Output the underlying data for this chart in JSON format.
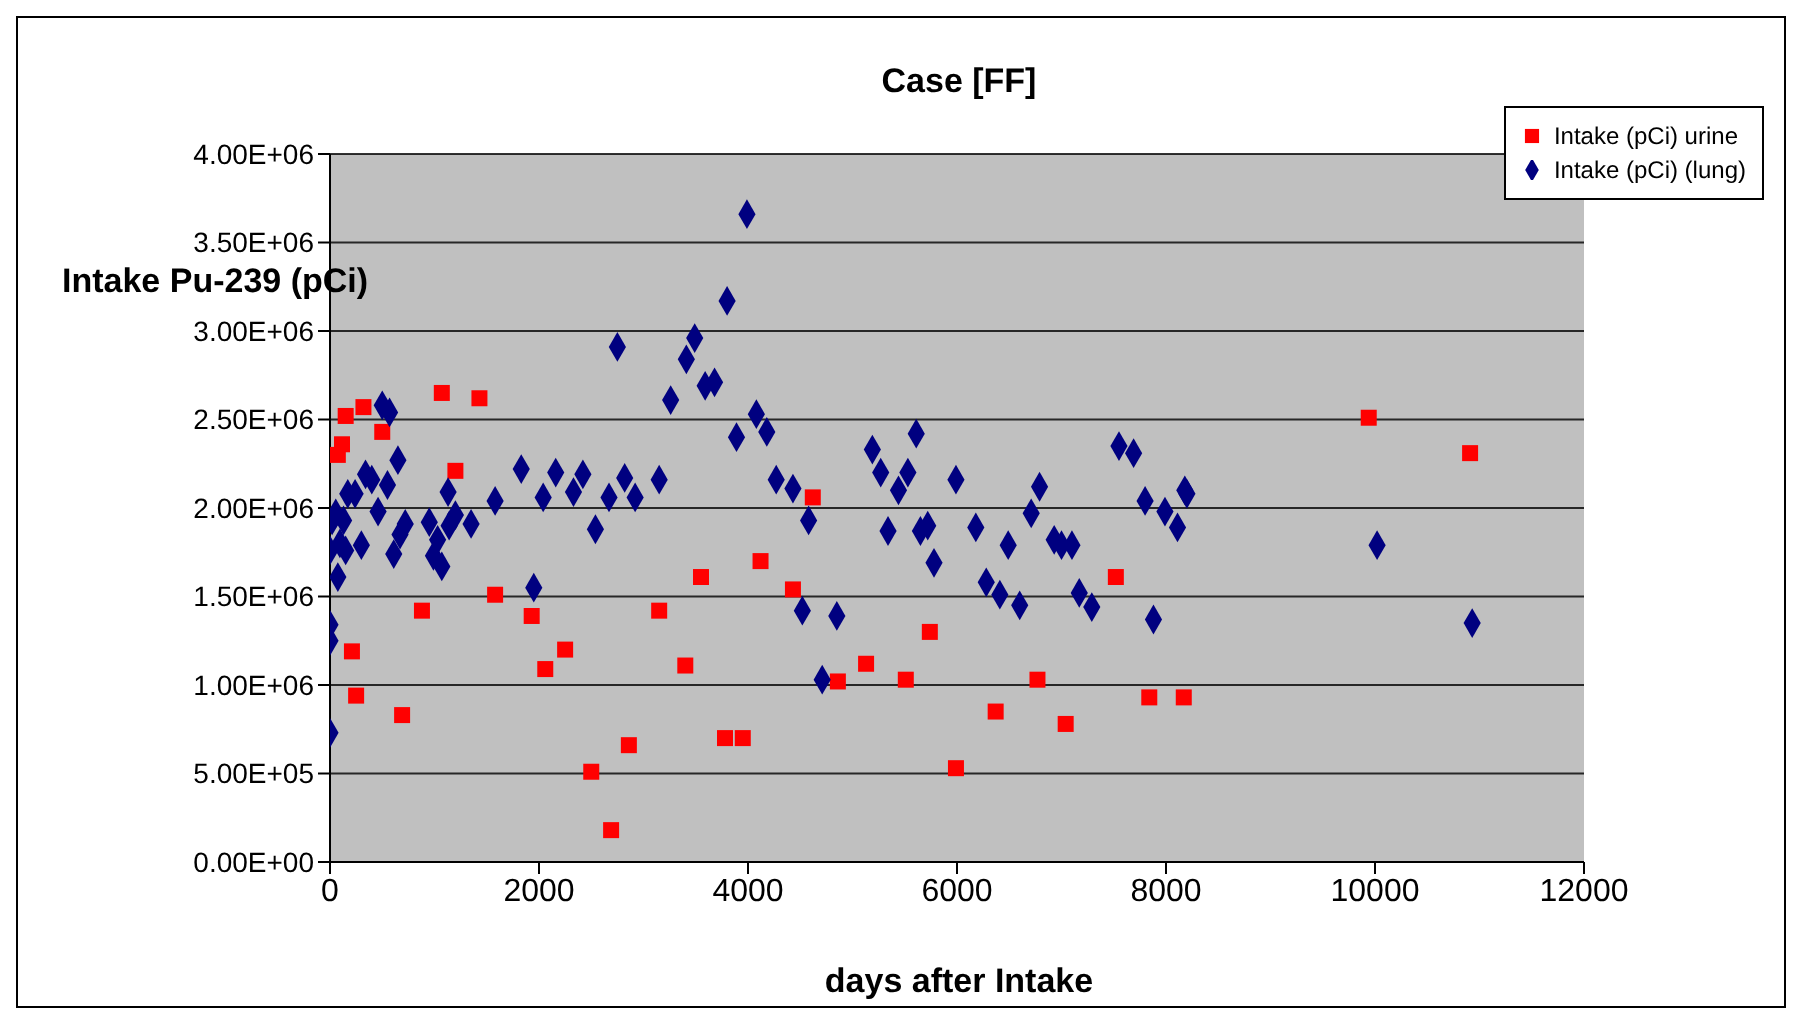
{
  "chart_data": {
    "type": "scatter",
    "title": "Case [FF]",
    "xlabel": "days after Intake",
    "ylabel": "Intake Pu-239 (pCi)",
    "xlim": [
      0,
      12000
    ],
    "xticks": [
      0,
      2000,
      4000,
      6000,
      8000,
      10000,
      12000
    ],
    "ylim": [
      0,
      4000000
    ],
    "yticks": [
      {
        "value": 0,
        "label": "0.00E+00"
      },
      {
        "value": 500000,
        "label": "5.00E+05"
      },
      {
        "value": 1000000,
        "label": "1.00E+06"
      },
      {
        "value": 1500000,
        "label": "1.50E+06"
      },
      {
        "value": 2000000,
        "label": "2.00E+06"
      },
      {
        "value": 2500000,
        "label": "2.50E+06"
      },
      {
        "value": 3000000,
        "label": "3.00E+06"
      },
      {
        "value": 3500000,
        "label": "3.50E+06"
      },
      {
        "value": 4000000,
        "label": "4.00E+06"
      }
    ],
    "grid": "y",
    "legend": "top right",
    "series": [
      {
        "name": "Intake (pCi) urine",
        "color": "#ff0000",
        "marker": "square",
        "x": [
          150,
          320,
          115,
          75,
          500,
          1070,
          1430,
          1200,
          1580,
          880,
          1930,
          210,
          2250,
          2060,
          250,
          690,
          2500,
          2860,
          2690,
          3150,
          3400,
          3550,
          3780,
          3950,
          4620,
          4120,
          4430,
          4860,
          5130,
          5510,
          5740,
          5990,
          6370,
          6770,
          7040,
          7520,
          7840,
          8170,
          9940,
          10910
        ],
        "values": [
          2520000,
          2570000,
          2360000,
          2300000,
          2430000,
          2650000,
          2620000,
          2210000,
          1510000,
          1420000,
          1390000,
          1190000,
          1200000,
          1090000,
          940000,
          830000,
          510000,
          660000,
          180000,
          1420000,
          1110000,
          1610000,
          700000,
          700000,
          2060000,
          1700000,
          1540000,
          1020000,
          1120000,
          1030000,
          1300000,
          530000,
          850000,
          1030000,
          780000,
          1610000,
          930000,
          930000,
          2510000,
          2310000
        ]
      },
      {
        "name": "Intake (pCi) (lung)",
        "color": "#000080",
        "marker": "diamond",
        "x": [
          0,
          0,
          0,
          75,
          0,
          95,
          150,
          300,
          20,
          55,
          130,
          170,
          240,
          340,
          400,
          550,
          460,
          650,
          500,
          570,
          720,
          670,
          610,
          950,
          1030,
          990,
          1070,
          1130,
          1200,
          1140,
          1350,
          1580,
          1830,
          1950,
          2040,
          2160,
          2330,
          2420,
          2540,
          2670,
          2820,
          2920,
          3150,
          2750,
          3260,
          3410,
          3490,
          3590,
          3680,
          3800,
          3890,
          3990,
          4080,
          4180,
          4270,
          4430,
          4580,
          4520,
          4850,
          4710,
          5190,
          5270,
          5340,
          5440,
          5530,
          5610,
          5650,
          5720,
          5780,
          5990,
          6180,
          6280,
          6410,
          6490,
          6600,
          6710,
          6790,
          6930,
          7000,
          7100,
          7170,
          7290,
          7550,
          7690,
          7800,
          7880,
          7990,
          8110,
          8180,
          8200,
          10020,
          10930
        ],
        "values": [
          730000,
          1340000,
          1250000,
          1610000,
          1760000,
          1800000,
          1760000,
          1790000,
          1930000,
          1970000,
          1930000,
          2080000,
          2080000,
          2190000,
          2160000,
          2130000,
          1980000,
          2270000,
          2580000,
          2540000,
          1910000,
          1850000,
          1740000,
          1920000,
          1820000,
          1730000,
          1670000,
          2090000,
          1960000,
          1900000,
          1910000,
          2040000,
          2220000,
          1550000,
          2060000,
          2200000,
          2090000,
          2190000,
          1880000,
          2060000,
          2170000,
          2060000,
          2160000,
          2910000,
          2610000,
          2840000,
          2960000,
          2690000,
          2710000,
          3170000,
          2400000,
          3660000,
          2530000,
          2430000,
          2160000,
          2110000,
          1930000,
          1420000,
          1390000,
          1030000,
          2330000,
          2200000,
          1870000,
          2100000,
          2200000,
          2420000,
          1870000,
          1900000,
          1690000,
          2160000,
          1890000,
          1580000,
          1510000,
          1790000,
          1450000,
          1970000,
          2120000,
          1820000,
          1790000,
          1790000,
          1520000,
          1440000,
          2350000,
          2310000,
          2040000,
          1370000,
          1980000,
          1890000,
          2100000,
          2080000,
          1790000,
          1350000
        ]
      }
    ]
  }
}
